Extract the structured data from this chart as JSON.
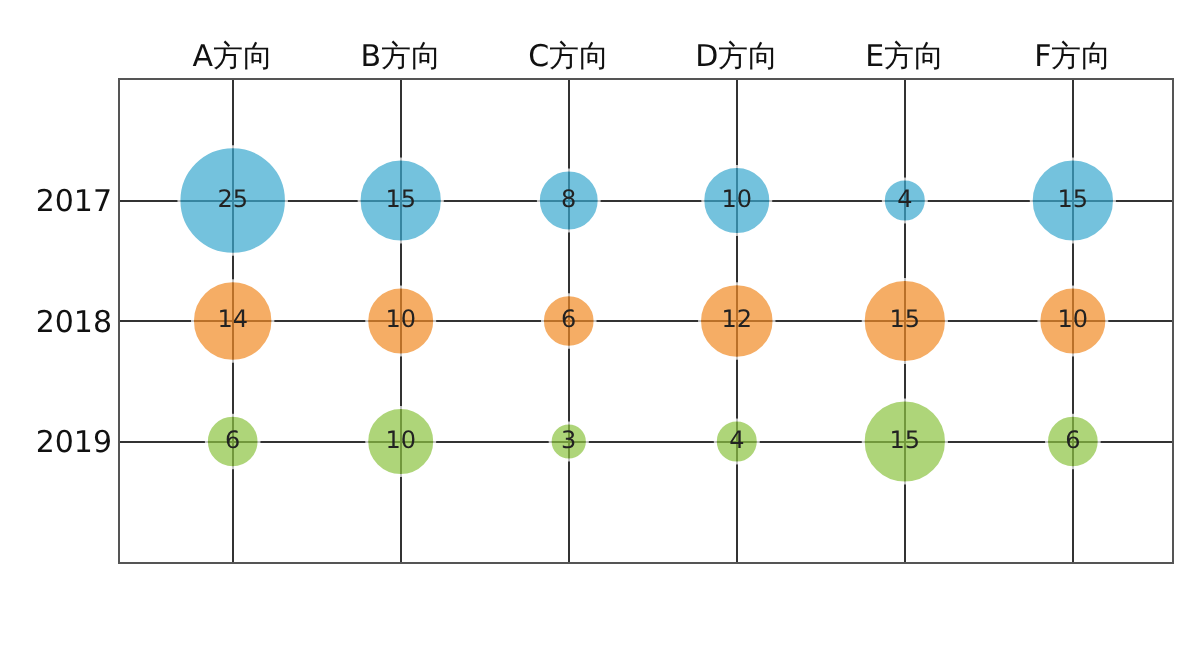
{
  "chart_data": {
    "type": "bubble",
    "categories": [
      "A方向",
      "B方向",
      "C方向",
      "D方向",
      "E方向",
      "F方向"
    ],
    "ylim": [
      2020,
      2016
    ],
    "yticks": [
      2017,
      2018,
      2019
    ],
    "grid": true,
    "series": [
      {
        "color": "#3aa9cf",
        "values": [
          2017,
          2017,
          2017,
          2017,
          2017,
          2017
        ],
        "sizes": [
          25,
          15,
          8,
          10,
          4,
          15
        ],
        "value_labels": [
          "25",
          "15",
          "8",
          "10",
          "4",
          "15"
        ]
      },
      {
        "color": "#f28b25",
        "values": [
          2018,
          2018,
          2018,
          2018,
          2018,
          2018
        ],
        "sizes": [
          14,
          10,
          6,
          12,
          15,
          10
        ],
        "value_labels": [
          "14",
          "10",
          "6",
          "12",
          "15",
          "10"
        ]
      },
      {
        "color": "#8dc441",
        "values": [
          2019,
          2019,
          2019,
          2019,
          2019,
          2019
        ],
        "sizes": [
          6,
          10,
          3,
          4,
          15,
          6
        ],
        "value_labels": [
          "6",
          "10",
          "3",
          "4",
          "15",
          "6"
        ]
      }
    ]
  }
}
